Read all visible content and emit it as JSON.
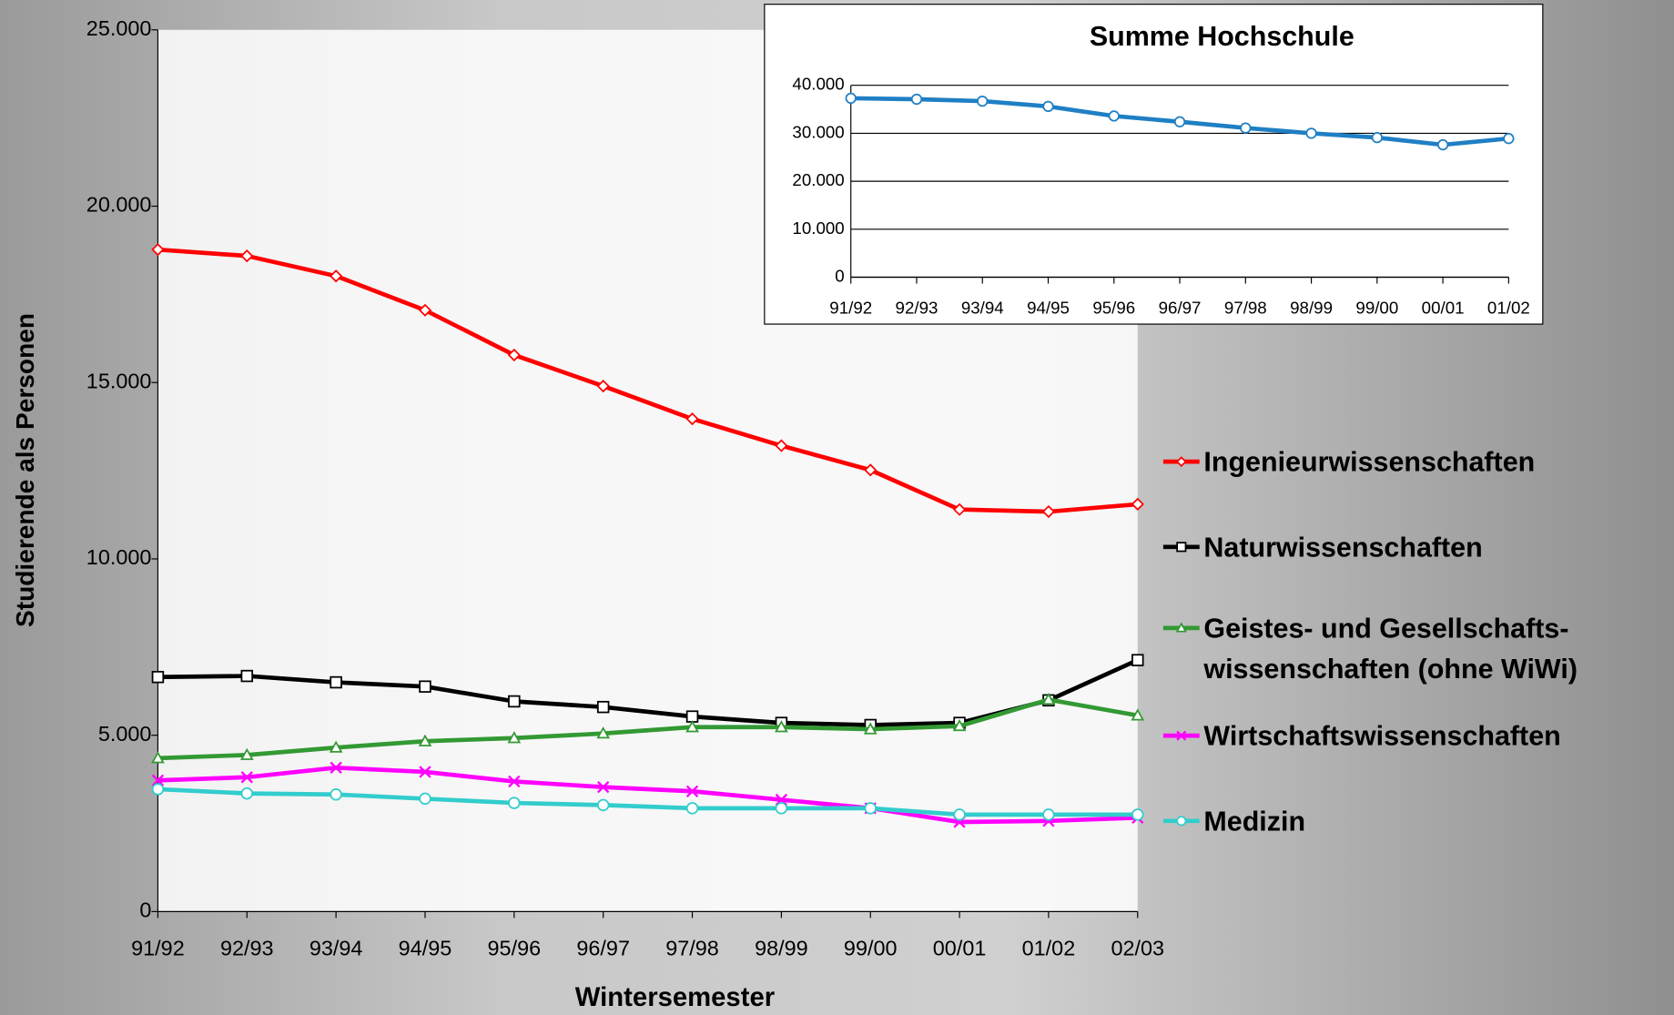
{
  "chart_data": [
    {
      "type": "line",
      "x_label": "Wintersemester",
      "y_label": "Studierende als Personen",
      "categories": [
        "91/92",
        "92/93",
        "93/94",
        "94/95",
        "95/96",
        "96/97",
        "97/98",
        "98/99",
        "99/00",
        "00/01",
        "01/02",
        "02/03"
      ],
      "ylim": [
        0,
        25000
      ],
      "yticks": [
        0,
        {
          "value": 5000,
          "label": "5.000"
        },
        {
          "value": 10000,
          "label": "10.000"
        },
        {
          "value": 15000,
          "label": "15.000"
        },
        {
          "value": 20000,
          "label": "20.000"
        },
        {
          "value": 25000,
          "label": "25.000"
        }
      ],
      "grid": false,
      "legend": "right",
      "series": [
        {
          "name": "Ingenieurwissenschaften",
          "color": "#ff0000",
          "marker": "diamond",
          "values": [
            18770,
            18590,
            18020,
            17050,
            15780,
            14900,
            13970,
            13210,
            12520,
            11400,
            11340,
            11550
          ]
        },
        {
          "name": "Naturwissenschaften",
          "color": "#000000",
          "marker": "square",
          "values": [
            6650,
            6680,
            6500,
            6380,
            5960,
            5800,
            5530,
            5350,
            5290,
            5350,
            5990,
            7130
          ]
        },
        {
          "name": "Geistes- und Gesellschafts-\nwissenschaften (ohne WiWi)",
          "color": "#339933",
          "marker": "triangle",
          "values": [
            4350,
            4440,
            4650,
            4830,
            4920,
            5050,
            5230,
            5230,
            5170,
            5260,
            6010,
            5560
          ]
        },
        {
          "name": "Wirtschaftswissenschaften",
          "color": "#ff00ff",
          "marker": "x",
          "values": [
            3720,
            3810,
            4080,
            3960,
            3690,
            3530,
            3410,
            3170,
            2930,
            2540,
            2570,
            2660
          ]
        },
        {
          "name": "Medizin",
          "color": "#33cccc",
          "marker": "circle",
          "values": [
            3470,
            3350,
            3320,
            3200,
            3080,
            3020,
            2930,
            2930,
            2930,
            2750,
            2750,
            2750
          ]
        }
      ]
    },
    {
      "type": "line",
      "title": "Summe Hochschule",
      "categories": [
        "91/92",
        "92/93",
        "93/94",
        "94/95",
        "95/96",
        "96/97",
        "97/98",
        "98/99",
        "99/00",
        "00/01",
        "01/02"
      ],
      "ylim": [
        0,
        40000
      ],
      "yticks": [
        0,
        {
          "value": 10000,
          "label": "10.000"
        },
        {
          "value": 20000,
          "label": "20.000"
        },
        {
          "value": 30000,
          "label": "30.000"
        },
        {
          "value": 40000,
          "label": "40.000"
        }
      ],
      "grid": true,
      "series": [
        {
          "color": "#1f7fc4",
          "marker": "circle",
          "values": [
            37300,
            37100,
            36700,
            35600,
            33600,
            32400,
            31100,
            30000,
            29100,
            27600,
            28900
          ]
        }
      ]
    }
  ]
}
